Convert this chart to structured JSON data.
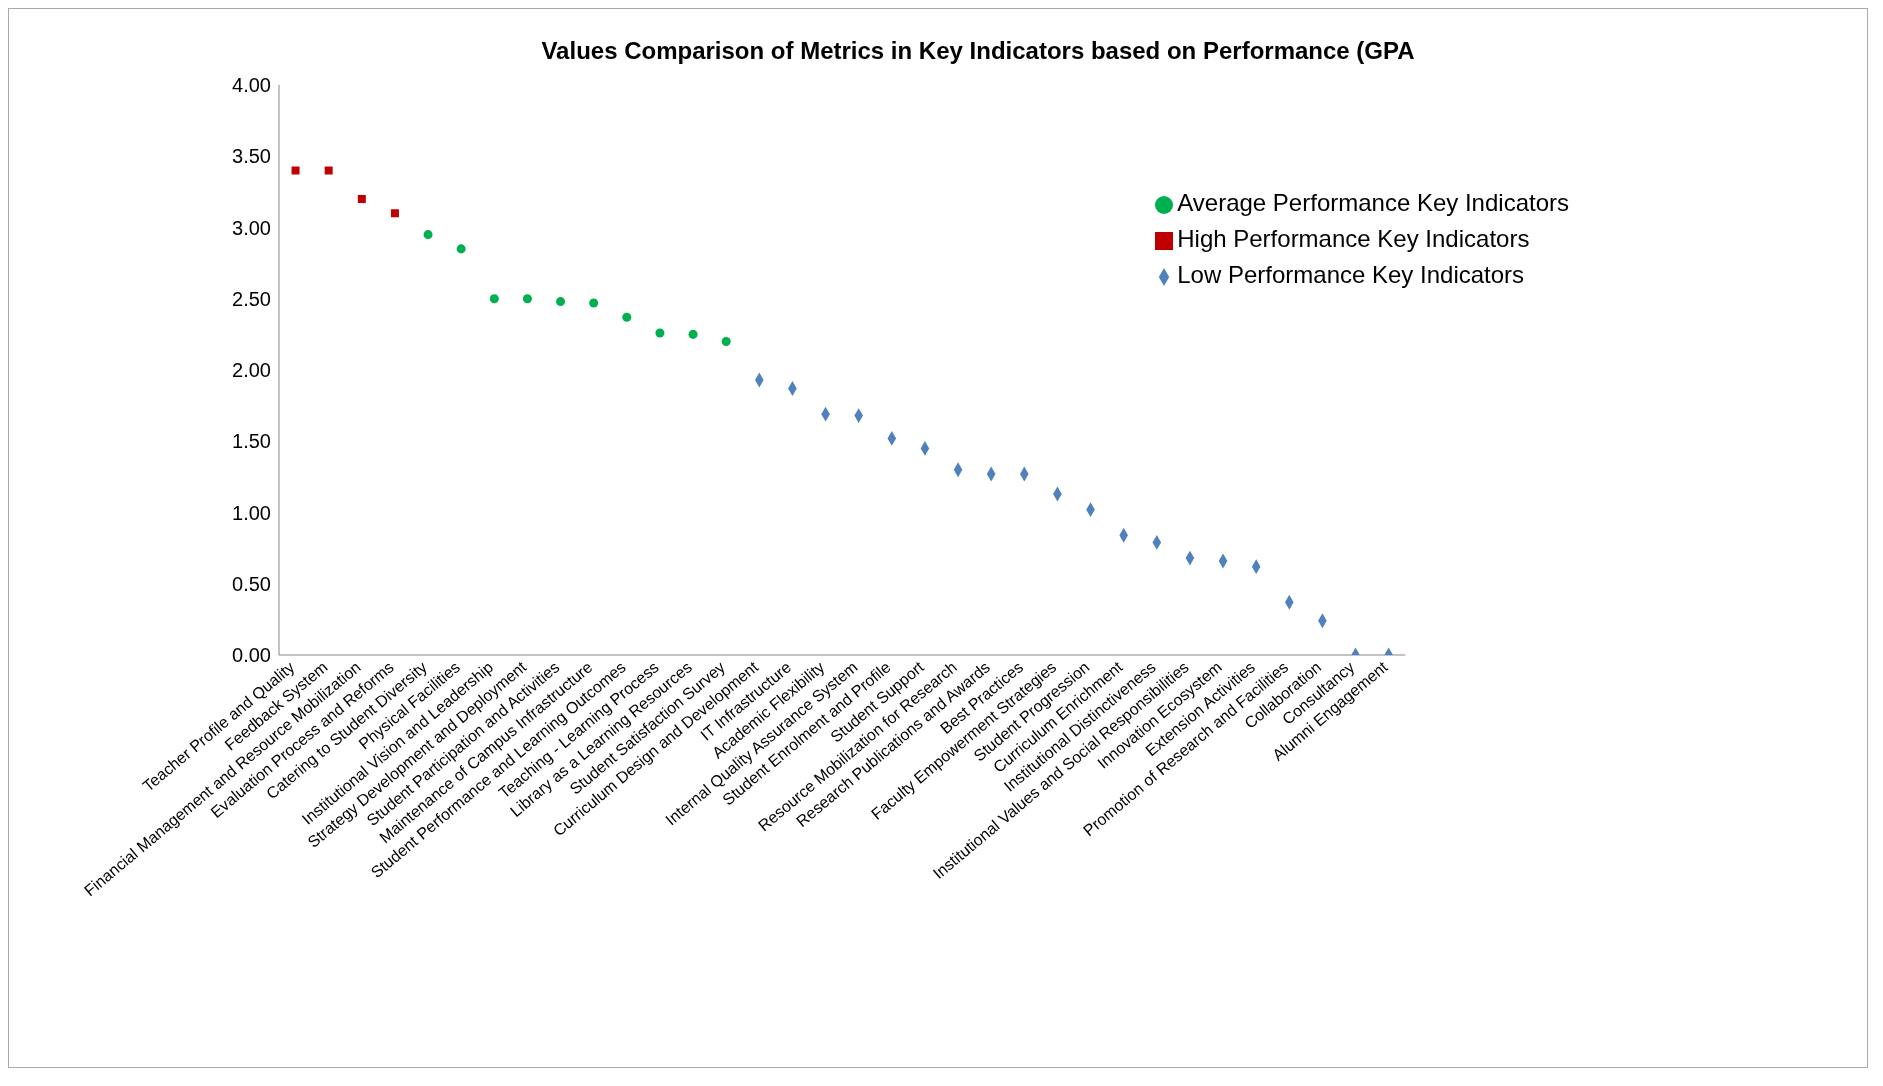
{
  "chart_data": {
    "type": "scatter",
    "title": "Values Comparison of Metrics in Key Indicators based on Performance (GPA",
    "categories": [
      "Teacher Profile and Quality",
      "Feedback System",
      "Financial Management and Resource Mobilization",
      "Evaluation Process and Reforms",
      "Catering to Student Diversity",
      "Physical Facilities",
      "Institutional Vision and Leadership",
      "Strategy Development and Deployment",
      "Student Participation and Activities",
      "Maintenance of Campus Infrastructure",
      "Student Performance and Learning Outcomes",
      "Teaching - Learning Process",
      "Library as a Learning Resources",
      "Student Satisfaction Survey",
      "Curriculum Design and Development",
      "IT Infrastructure",
      "Academic Flexibility",
      "Internal Quality Assurance System",
      "Student Enrolment and Profile",
      "Student Support",
      "Resource Mobilization for Research",
      "Research Publications and Awards",
      "Best Practices",
      "Faculty Empowerment Strategies",
      "Student Progression",
      "Curriculum Enrichment",
      "Institutional Distinctiveness",
      "Institutional Values and Social Responsibilities",
      "Innovation Ecosystem",
      "Extension Activities",
      "Promotion of Research and Facilities",
      "Collaboration",
      "Consultancy",
      "Alumni Engagement"
    ],
    "series": [
      {
        "name": "High Performance Key Indicators",
        "color": "#c00000",
        "marker": "square",
        "values": [
          3.4,
          3.4,
          3.2,
          3.1,
          null,
          null,
          null,
          null,
          null,
          null,
          null,
          null,
          null,
          null,
          null,
          null,
          null,
          null,
          null,
          null,
          null,
          null,
          null,
          null,
          null,
          null,
          null,
          null,
          null,
          null,
          null,
          null,
          null,
          null
        ]
      },
      {
        "name": "Average Performance Key Indicators",
        "color": "#00b050",
        "marker": "circle",
        "values": [
          null,
          null,
          null,
          null,
          2.95,
          2.85,
          2.5,
          2.5,
          2.48,
          2.47,
          2.37,
          2.26,
          2.25,
          2.2,
          null,
          null,
          null,
          null,
          null,
          null,
          null,
          null,
          null,
          null,
          null,
          null,
          null,
          null,
          null,
          null,
          null,
          null,
          null,
          null
        ]
      },
      {
        "name": "Low Performance Key Indicators",
        "color": "#4f81bd",
        "marker": "diamond",
        "values": [
          null,
          null,
          null,
          null,
          null,
          null,
          null,
          null,
          null,
          null,
          null,
          null,
          null,
          null,
          1.93,
          1.87,
          1.69,
          1.68,
          1.52,
          1.45,
          1.3,
          1.27,
          1.27,
          1.13,
          1.02,
          0.84,
          0.79,
          0.68,
          0.66,
          0.62,
          0.37,
          0.24,
          0,
          0
        ]
      }
    ],
    "ylim": [
      0,
      4
    ],
    "yticks": [
      {
        "value": 0,
        "label": "0.00"
      },
      {
        "value": 0.5,
        "label": "0.50"
      },
      {
        "value": 1,
        "label": "1.00"
      },
      {
        "value": 1.5,
        "label": "1.50"
      },
      {
        "value": 2,
        "label": "2.00"
      },
      {
        "value": 2.5,
        "label": "2.50"
      },
      {
        "value": 3,
        "label": "3.00"
      },
      {
        "value": 3.5,
        "label": "3.50"
      },
      {
        "value": 4,
        "label": "4.00"
      }
    ],
    "grid": false,
    "legend": "top right"
  }
}
